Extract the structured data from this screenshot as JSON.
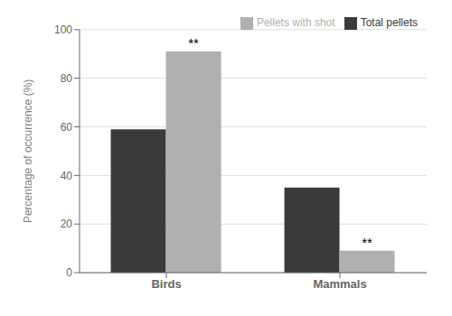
{
  "chart_data": {
    "type": "bar",
    "categories": [
      "Birds",
      "Mammals"
    ],
    "series": [
      {
        "name": "Total pellets",
        "color": "#3a3a3a",
        "values": [
          59,
          35
        ]
      },
      {
        "name": "Pellets with shot",
        "color": "#b0b0b0",
        "values": [
          91,
          9
        ]
      }
    ],
    "ylabel": "Percentage of occurrence (%)",
    "ylim": [
      0,
      100
    ],
    "yticks": [
      0,
      20,
      40,
      60,
      80,
      100
    ],
    "grid": true,
    "legend": "upper right",
    "annotations": [
      {
        "text": "**",
        "category": "Birds",
        "series": "Pellets with shot"
      },
      {
        "text": "**",
        "category": "Mammals",
        "series": "Pellets with shot"
      }
    ]
  }
}
